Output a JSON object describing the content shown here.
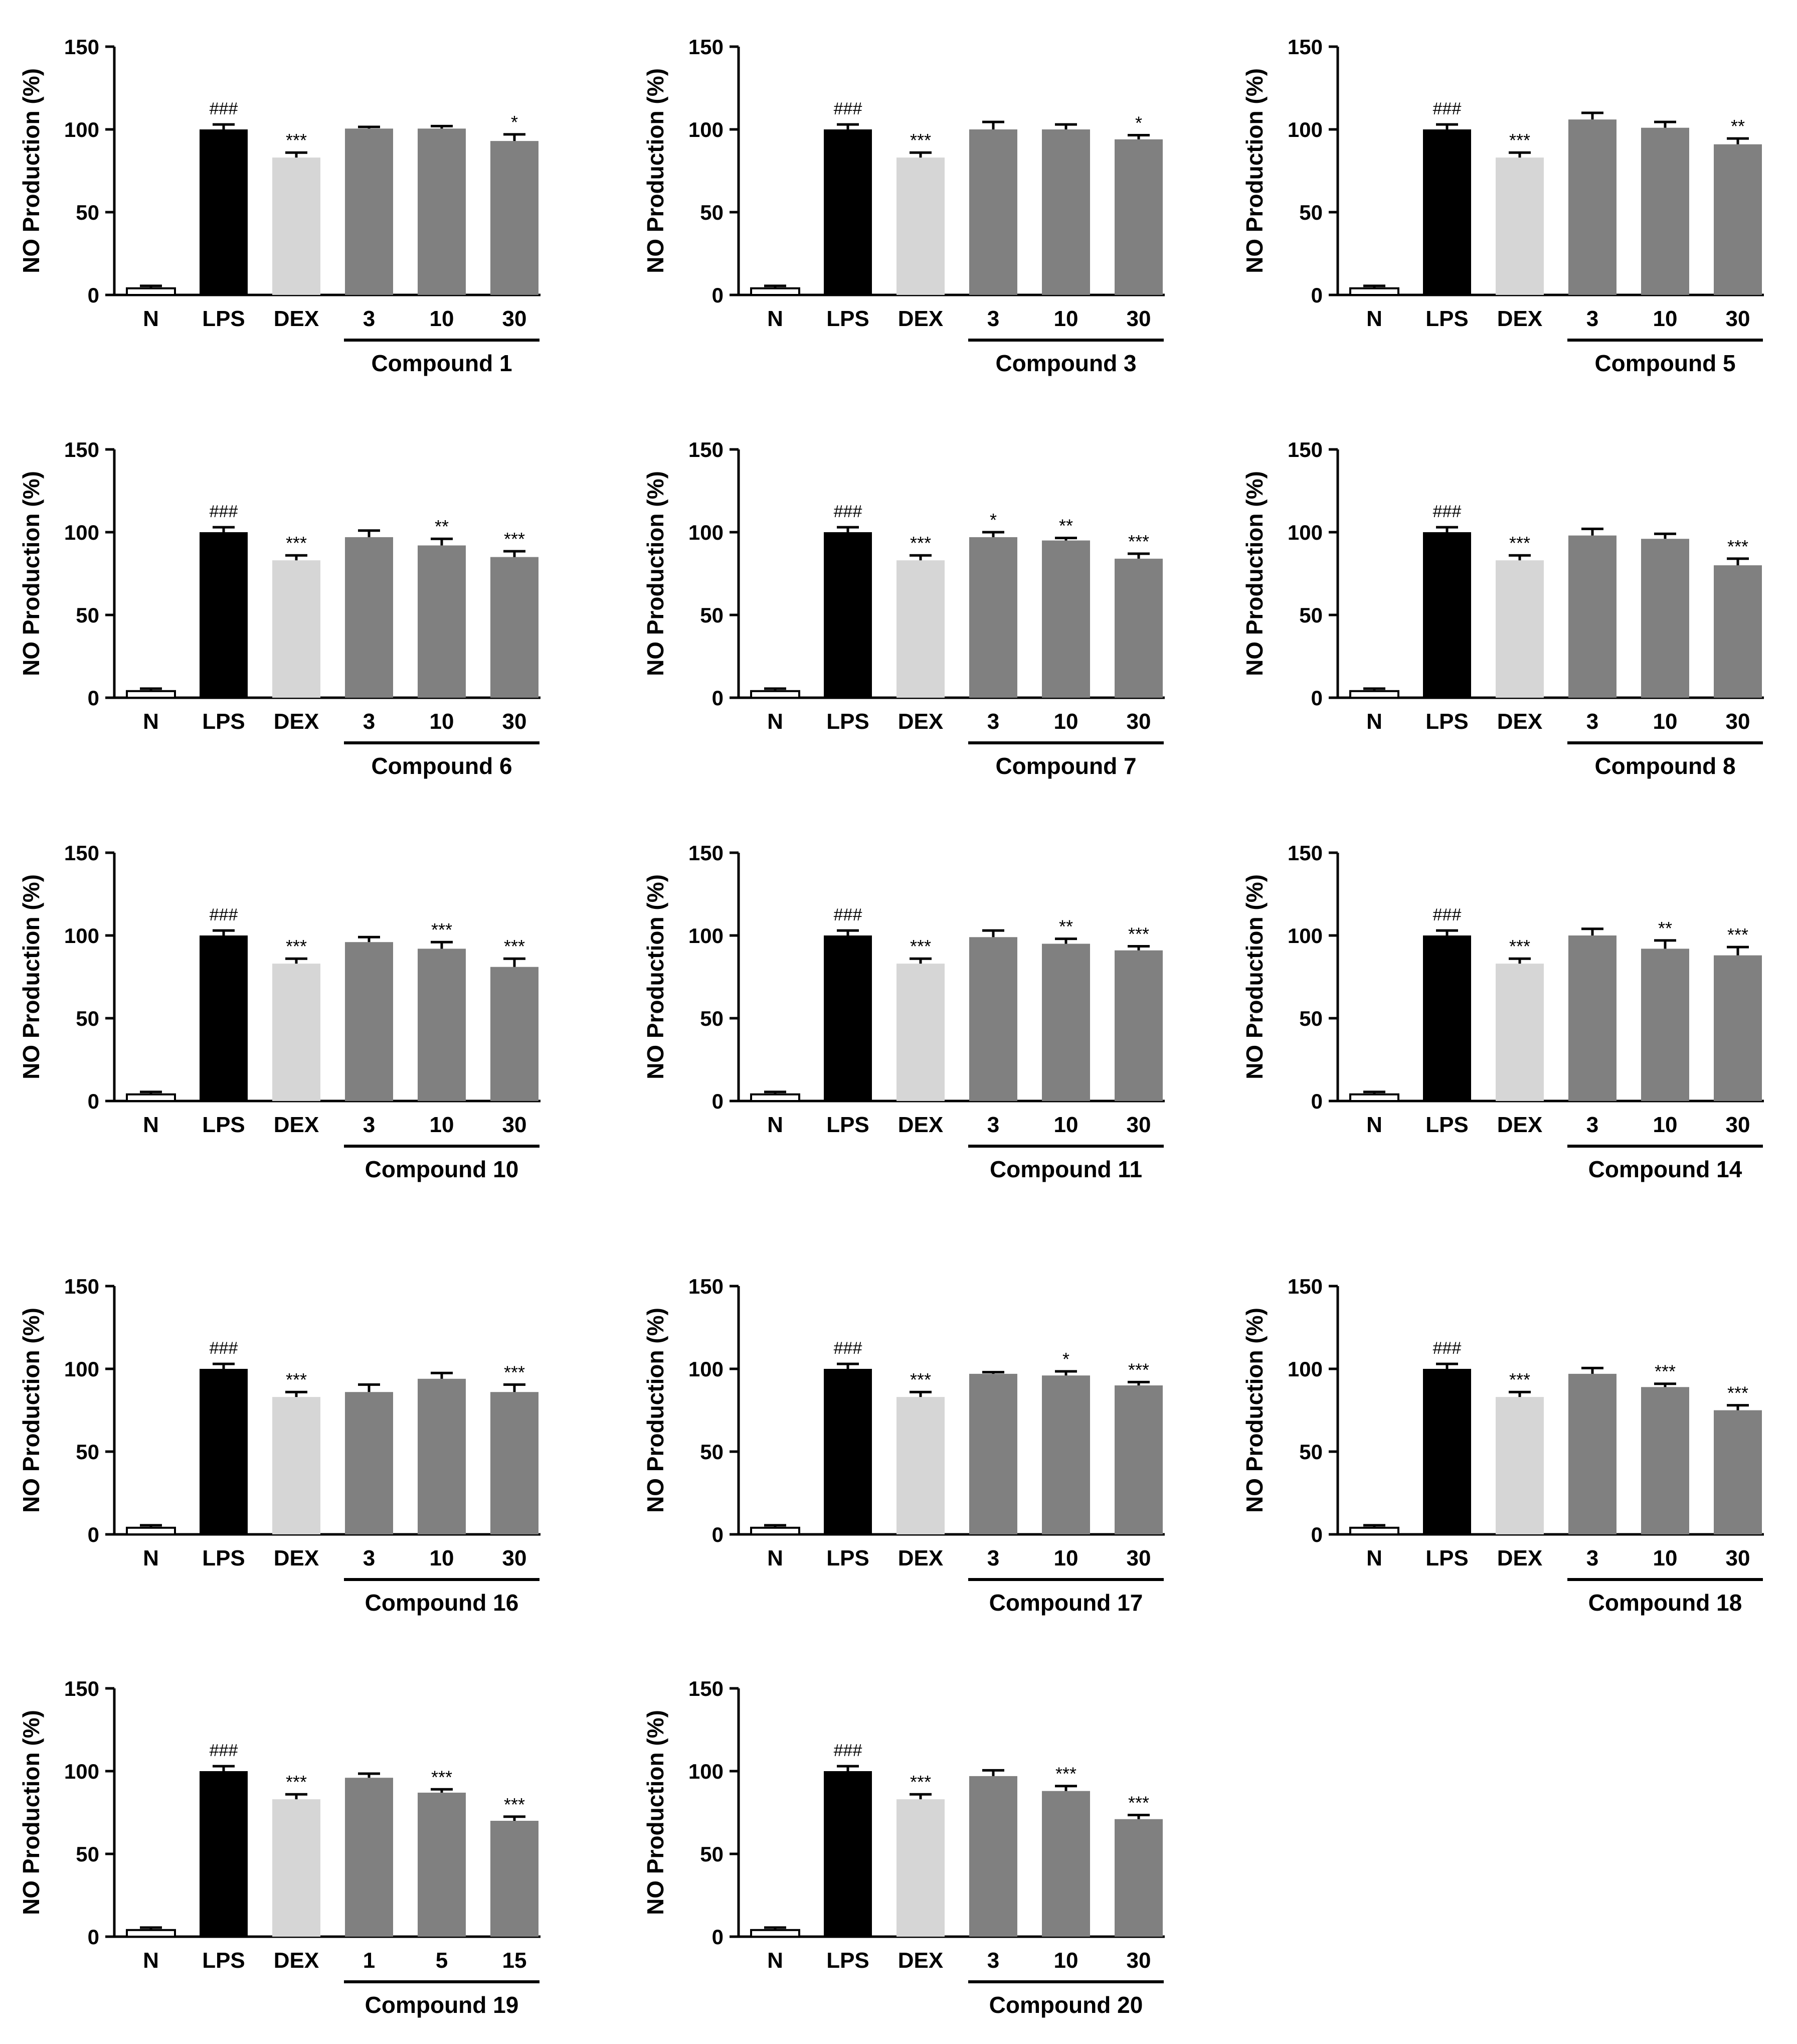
{
  "figure": {
    "ylabel": "NO Production (%)",
    "yticks": [
      0,
      50,
      100,
      150
    ],
    "ylim": [
      0,
      150
    ],
    "controls": [
      "N",
      "LPS",
      "DEX"
    ],
    "bar_colors": {
      "N": "#ffffff",
      "LPS": "#000000",
      "DEX": "#d6d6d6",
      "compound": "#808080"
    }
  },
  "chart_data": [
    {
      "type": "bar",
      "title": "Compound 1",
      "xlabel": "Compound 1",
      "ylabel": "NO Production (%)",
      "ylim": [
        0,
        150
      ],
      "categories": [
        "N",
        "LPS",
        "DEX",
        "3",
        "10",
        "30"
      ],
      "values": [
        4,
        100,
        83,
        100.5,
        100.5,
        93
      ],
      "errors": [
        1.5,
        3,
        3,
        1,
        1.5,
        4
      ],
      "significance": [
        "",
        "###",
        "***",
        "",
        "",
        "*"
      ]
    },
    {
      "type": "bar",
      "title": "Compound 3",
      "xlabel": "Compound 3",
      "ylabel": "NO Production (%)",
      "ylim": [
        0,
        150
      ],
      "categories": [
        "N",
        "LPS",
        "DEX",
        "3",
        "10",
        "30"
      ],
      "values": [
        4,
        100,
        83,
        100,
        100,
        94
      ],
      "errors": [
        1.5,
        3,
        3,
        4.5,
        3,
        2.5
      ],
      "significance": [
        "",
        "###",
        "***",
        "",
        "",
        "*"
      ]
    },
    {
      "type": "bar",
      "title": "Compound 5",
      "xlabel": "Compound 5",
      "ylabel": "NO Production (%)",
      "ylim": [
        0,
        150
      ],
      "categories": [
        "N",
        "LPS",
        "DEX",
        "3",
        "10",
        "30"
      ],
      "values": [
        4,
        100,
        83,
        106,
        101,
        91
      ],
      "errors": [
        1.5,
        3,
        3,
        4,
        3.5,
        3.5
      ],
      "significance": [
        "",
        "###",
        "***",
        "",
        "",
        "**"
      ]
    },
    {
      "type": "bar",
      "title": "Compound 6",
      "xlabel": "Compound 6",
      "ylabel": "NO Production (%)",
      "ylim": [
        0,
        150
      ],
      "categories": [
        "N",
        "LPS",
        "DEX",
        "3",
        "10",
        "30"
      ],
      "values": [
        4,
        100,
        83,
        97,
        92,
        85
      ],
      "errors": [
        1.5,
        3,
        3,
        4,
        4,
        3.5
      ],
      "significance": [
        "",
        "###",
        "***",
        "",
        "**",
        "***"
      ]
    },
    {
      "type": "bar",
      "title": "Compound 7",
      "xlabel": "Compound 7",
      "ylabel": "NO Production (%)",
      "ylim": [
        0,
        150
      ],
      "categories": [
        "N",
        "LPS",
        "DEX",
        "3",
        "10",
        "30"
      ],
      "values": [
        4,
        100,
        83,
        97,
        95,
        84
      ],
      "errors": [
        1.5,
        3,
        3,
        3,
        1.5,
        3
      ],
      "significance": [
        "",
        "###",
        "***",
        "*",
        "**",
        "***"
      ]
    },
    {
      "type": "bar",
      "title": "Compound 8",
      "xlabel": "Compound 8",
      "ylabel": "NO Production (%)",
      "ylim": [
        0,
        150
      ],
      "categories": [
        "N",
        "LPS",
        "DEX",
        "3",
        "10",
        "30"
      ],
      "values": [
        4,
        100,
        83,
        98,
        96,
        80
      ],
      "errors": [
        1.5,
        3,
        3,
        4,
        3,
        4
      ],
      "significance": [
        "",
        "###",
        "***",
        "",
        "",
        "***"
      ]
    },
    {
      "type": "bar",
      "title": "Compound 10",
      "xlabel": "Compound 10",
      "ylabel": "NO Production (%)",
      "ylim": [
        0,
        150
      ],
      "categories": [
        "N",
        "LPS",
        "DEX",
        "3",
        "10",
        "30"
      ],
      "values": [
        4,
        100,
        83,
        96,
        92,
        81
      ],
      "errors": [
        1.5,
        3,
        3,
        3,
        4,
        5
      ],
      "significance": [
        "",
        "###",
        "***",
        "",
        "***",
        "***"
      ]
    },
    {
      "type": "bar",
      "title": "Compound 11",
      "xlabel": "Compound 11",
      "ylabel": "NO Production (%)",
      "ylim": [
        0,
        150
      ],
      "categories": [
        "N",
        "LPS",
        "DEX",
        "3",
        "10",
        "30"
      ],
      "values": [
        4,
        100,
        83,
        99,
        95,
        91
      ],
      "errors": [
        1.5,
        3,
        3,
        4,
        3,
        2.5
      ],
      "significance": [
        "",
        "###",
        "***",
        "",
        "**",
        "***"
      ]
    },
    {
      "type": "bar",
      "title": "Compound 14",
      "xlabel": "Compound 14",
      "ylabel": "NO Production (%)",
      "ylim": [
        0,
        150
      ],
      "categories": [
        "N",
        "LPS",
        "DEX",
        "3",
        "10",
        "30"
      ],
      "values": [
        4,
        100,
        83,
        100,
        92,
        88
      ],
      "errors": [
        1.5,
        3,
        3,
        4,
        5,
        5
      ],
      "significance": [
        "",
        "###",
        "***",
        "",
        "**",
        "***"
      ]
    },
    {
      "type": "bar",
      "title": "Compound 16",
      "xlabel": "Compound 16",
      "ylabel": "NO Production (%)",
      "ylim": [
        0,
        150
      ],
      "categories": [
        "N",
        "LPS",
        "DEX",
        "3",
        "10",
        "30"
      ],
      "values": [
        4,
        100,
        83,
        86,
        94,
        86
      ],
      "errors": [
        1.5,
        3,
        3,
        4.5,
        3.5,
        4.5
      ],
      "significance": [
        "",
        "###",
        "***",
        "",
        "",
        "***"
      ]
    },
    {
      "type": "bar",
      "title": "Compound 17",
      "xlabel": "Compound 17",
      "ylabel": "NO Production (%)",
      "ylim": [
        0,
        150
      ],
      "categories": [
        "N",
        "LPS",
        "DEX",
        "3",
        "10",
        "30"
      ],
      "values": [
        4,
        100,
        83,
        97,
        96,
        90
      ],
      "errors": [
        1.5,
        3,
        3,
        1,
        2.5,
        2
      ],
      "significance": [
        "",
        "###",
        "***",
        "",
        "*",
        "***"
      ]
    },
    {
      "type": "bar",
      "title": "Compound 18",
      "xlabel": "Compound 18",
      "ylabel": "NO Production (%)",
      "ylim": [
        0,
        150
      ],
      "categories": [
        "N",
        "LPS",
        "DEX",
        "3",
        "10",
        "30"
      ],
      "values": [
        4,
        100,
        83,
        97,
        89,
        75
      ],
      "errors": [
        1.5,
        3,
        3,
        3.5,
        2,
        3
      ],
      "significance": [
        "",
        "###",
        "***",
        "",
        "***",
        "***"
      ]
    },
    {
      "type": "bar",
      "title": "Compound 19",
      "xlabel": "Compound 19",
      "ylabel": "NO Production (%)",
      "ylim": [
        0,
        150
      ],
      "categories": [
        "N",
        "LPS",
        "DEX",
        "1",
        "5",
        "15"
      ],
      "values": [
        4,
        100,
        83,
        96,
        87,
        70
      ],
      "errors": [
        1.5,
        3,
        3,
        2.5,
        2,
        2.5
      ],
      "significance": [
        "",
        "###",
        "***",
        "",
        "***",
        "***"
      ]
    },
    {
      "type": "bar",
      "title": "Compound 20",
      "xlabel": "Compound 20",
      "ylabel": "NO Production (%)",
      "ylim": [
        0,
        150
      ],
      "categories": [
        "N",
        "LPS",
        "DEX",
        "3",
        "10",
        "30"
      ],
      "values": [
        4,
        100,
        83,
        97,
        88,
        71
      ],
      "errors": [
        1.5,
        3,
        3,
        3.5,
        3,
        2.5
      ],
      "significance": [
        "",
        "###",
        "***",
        "",
        "***",
        "***"
      ]
    }
  ]
}
